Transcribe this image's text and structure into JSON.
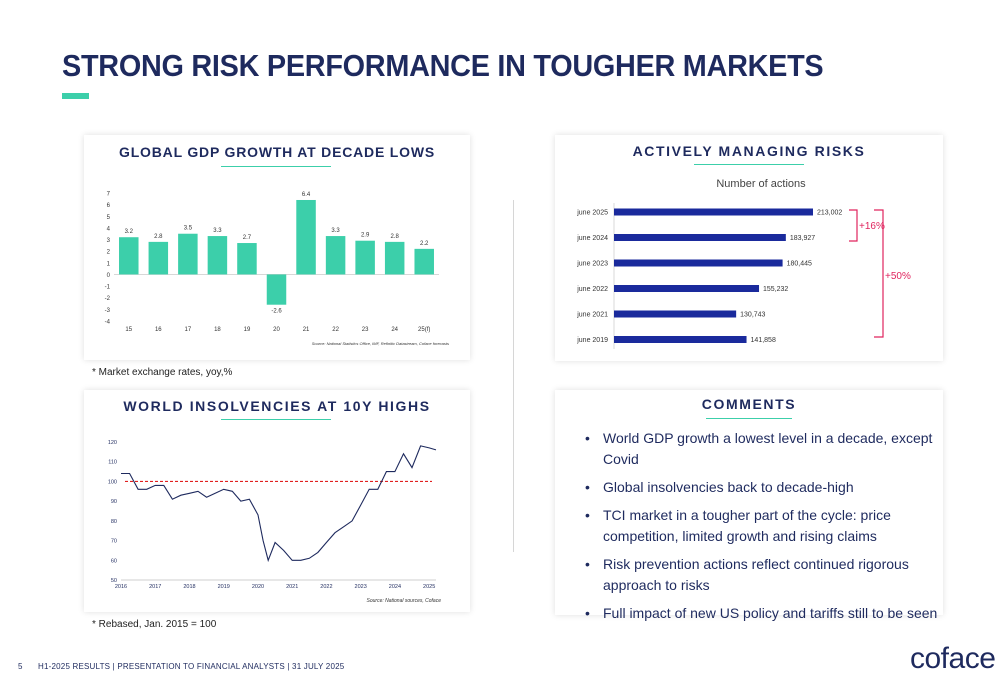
{
  "slide": {
    "title": "STRONG RISK PERFORMANCE IN TOUGHER MARKETS",
    "page_number": "5",
    "footer": "H1-2025 RESULTS  |  PRESENTATION TO FINANCIAL ANALYSTS  |  31 JULY 2025",
    "logo": "coface",
    "colors": {
      "navy": "#1e2a5e",
      "teal": "#3ccfaa",
      "bar_blue": "#1a2a9c",
      "bracket_pink": "#e0245e",
      "ref_red": "#e02020"
    }
  },
  "gdp_card": {
    "title": "GLOBAL GDP GROWTH AT DECADE LOWS",
    "note": "* Market exchange rates, yoy,%"
  },
  "risk_card": {
    "title": "ACTIVELY MANAGING RISKS"
  },
  "insolvency_card": {
    "title": "WORLD INSOLVENCIES AT 10Y HIGHS",
    "note": "* Rebased, Jan. 2015 = 100"
  },
  "comments_card": {
    "title": "COMMENTS",
    "items": [
      "World GDP growth a lowest level in a decade, except Covid",
      "Global insolvencies back to decade-high",
      "TCI market in a tougher part of the cycle: price competition, limited growth and rising claims",
      "Risk prevention actions reflect continued rigorous approach to risks",
      "Full impact of new US policy and tariffs still to be seen"
    ]
  },
  "chart_data": [
    {
      "type": "bar",
      "title": "GLOBAL GDP GROWTH AT DECADE LOWS",
      "categories": [
        "15",
        "16",
        "17",
        "18",
        "19",
        "20",
        "21",
        "22",
        "23",
        "24",
        "25(f)"
      ],
      "values": [
        3.2,
        2.8,
        3.5,
        3.3,
        2.7,
        -2.6,
        6.4,
        3.3,
        2.9,
        2.8,
        2.2
      ],
      "data_labels": [
        "3.2",
        "2.8",
        "3.5",
        "3.3",
        "2.7",
        "-2.6",
        "6.4",
        "3.3",
        "2.9",
        "2.8",
        "2.2"
      ],
      "ylim": [
        -4,
        7
      ],
      "yticks": [
        7,
        6,
        5,
        4,
        3,
        2,
        1,
        0,
        -1,
        -2,
        -3,
        -4
      ],
      "source": "Source: National Statistics Office, IMF, Refinitiv Datastream, Coface forecasts",
      "bar_color": "#3ccfaa"
    },
    {
      "type": "bar",
      "orientation": "horizontal",
      "title": "ACTIVELY MANAGING RISKS",
      "subtitle": "Number of actions",
      "categories": [
        "june 2025",
        "june 2024",
        "june 2023",
        "june 2022",
        "june 2021",
        "june 2019"
      ],
      "values": [
        213002,
        183927,
        180445,
        155232,
        130743,
        141858
      ],
      "data_labels": [
        "213,002",
        "183,927",
        "180,445",
        "155,232",
        "130,743",
        "141,858"
      ],
      "annotations": [
        {
          "text": "+16%",
          "from": "june 2025",
          "to": "june 2024"
        },
        {
          "text": "+50%",
          "from": "june 2025",
          "to": "june 2019"
        }
      ],
      "bar_color": "#1a2a9c"
    },
    {
      "type": "line",
      "title": "WORLD INSOLVENCIES AT 10Y HIGHS",
      "xticks": [
        "2016",
        "2017",
        "2018",
        "2019",
        "2020",
        "2021",
        "2022",
        "2023",
        "2024",
        "2025"
      ],
      "yticks": [
        120,
        110,
        100,
        90,
        80,
        70,
        60,
        50
      ],
      "ylim": [
        50,
        120
      ],
      "xlim": [
        2016,
        2025.2
      ],
      "reference_line": 100,
      "source": "Source: National sources, Coface",
      "series": [
        {
          "x": [
            2016.0,
            2016.25,
            2016.5,
            2016.75,
            2017.0,
            2017.25,
            2017.5,
            2017.75,
            2018.0,
            2018.25,
            2018.5,
            2018.75,
            2019.0,
            2019.25,
            2019.5,
            2019.75,
            2020.0,
            2020.15,
            2020.3,
            2020.5,
            2020.75,
            2021.0,
            2021.25,
            2021.5,
            2021.75,
            2022.0,
            2022.25,
            2022.5,
            2022.75,
            2023.0,
            2023.25,
            2023.5,
            2023.75,
            2024.0,
            2024.25,
            2024.5,
            2024.75,
            2025.0,
            2025.2
          ],
          "y": [
            104,
            104,
            96,
            96,
            98,
            98,
            91,
            93,
            94,
            95,
            92,
            94,
            96,
            95,
            90,
            91,
            83,
            70,
            60,
            69,
            65,
            60,
            60,
            61,
            64,
            69,
            74,
            77,
            80,
            88,
            96,
            96,
            105,
            105,
            114,
            107,
            118,
            117,
            116
          ]
        }
      ],
      "line_color": "#1e2a5e"
    }
  ]
}
